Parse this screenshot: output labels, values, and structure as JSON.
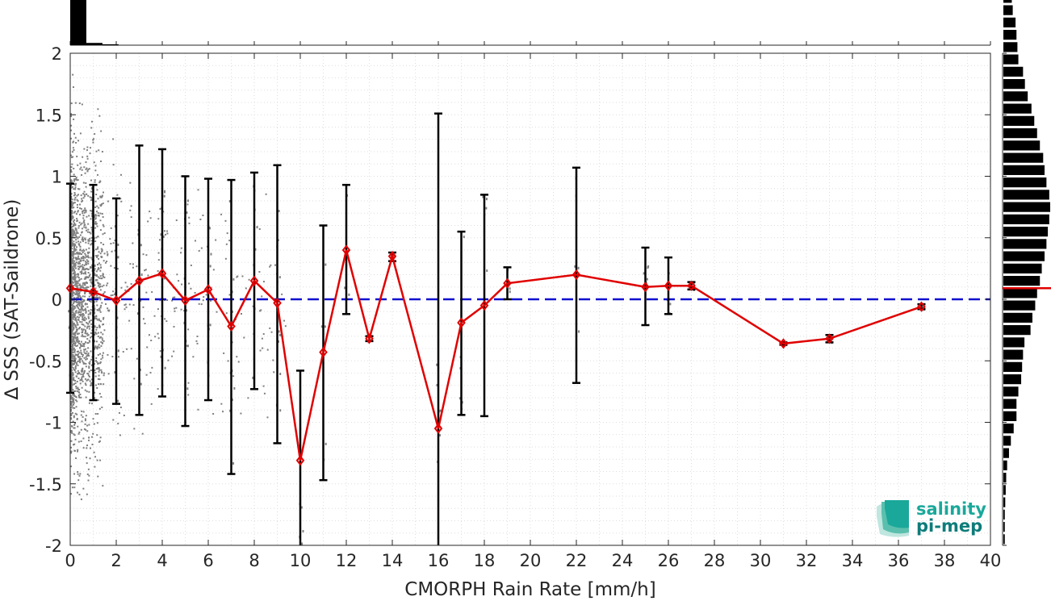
{
  "chart_data": {
    "type": "scatter",
    "xlabel": "CMORPH Rain Rate [mm/h]",
    "ylabel": "∆ SSS (SAT-Saildrone)",
    "xlim": [
      0,
      40
    ],
    "ylim": [
      -2,
      2
    ],
    "x_ticks": [
      0,
      2,
      4,
      6,
      8,
      10,
      12,
      14,
      16,
      18,
      20,
      22,
      24,
      26,
      28,
      30,
      32,
      34,
      36,
      38,
      40
    ],
    "y_ticks": [
      -2,
      -1.5,
      -1,
      -0.5,
      0,
      0.5,
      1,
      1.5,
      2
    ],
    "y_tick_labels": [
      "-2",
      "-1.5",
      "-1",
      "-0.5",
      "0",
      "0.5",
      "1",
      "1.5",
      "2"
    ],
    "grid": true,
    "reference_line": {
      "y": 0,
      "style": "dashed",
      "color": "#1010d0"
    },
    "mean_series": {
      "color": "#e00000",
      "x": [
        0,
        1,
        2,
        3,
        4,
        5,
        6,
        7,
        8,
        9,
        10,
        11,
        12,
        13,
        14,
        16,
        17,
        18,
        19,
        22,
        25,
        26,
        27,
        31,
        33,
        37
      ],
      "y": [
        0.09,
        0.06,
        -0.01,
        0.15,
        0.21,
        -0.01,
        0.08,
        -0.22,
        0.15,
        -0.03,
        -1.31,
        -0.43,
        0.4,
        -0.32,
        0.35,
        -1.05,
        -0.19,
        -0.05,
        0.13,
        0.2,
        0.1,
        0.11,
        0.11,
        -0.36,
        -0.32,
        -0.06
      ]
    },
    "error_bars": [
      {
        "x": 0,
        "low": -0.76,
        "high": 0.94
      },
      {
        "x": 1,
        "low": -0.82,
        "high": 0.93
      },
      {
        "x": 2,
        "low": -0.85,
        "high": 0.82
      },
      {
        "x": 3,
        "low": -0.94,
        "high": 1.25
      },
      {
        "x": 4,
        "low": -0.79,
        "high": 1.22
      },
      {
        "x": 5,
        "low": -1.03,
        "high": 1.0
      },
      {
        "x": 6,
        "low": -0.82,
        "high": 0.98
      },
      {
        "x": 7,
        "low": -1.42,
        "high": 0.97
      },
      {
        "x": 8,
        "low": -0.73,
        "high": 1.03
      },
      {
        "x": 9,
        "low": -1.17,
        "high": 1.09
      },
      {
        "x": 10,
        "low": -2.05,
        "high": -0.58
      },
      {
        "x": 11,
        "low": -1.47,
        "high": 0.6
      },
      {
        "x": 12,
        "low": -0.12,
        "high": 0.93
      },
      {
        "x": 13,
        "low": -0.34,
        "high": -0.3
      },
      {
        "x": 14,
        "low": 0.31,
        "high": 0.38
      },
      {
        "x": 16,
        "low": -2.05,
        "high": 1.51
      },
      {
        "x": 17,
        "low": -0.94,
        "high": 0.55
      },
      {
        "x": 18,
        "low": -0.95,
        "high": 0.85
      },
      {
        "x": 19,
        "low": 0.0,
        "high": 0.26
      },
      {
        "x": 22,
        "low": -0.68,
        "high": 1.07
      },
      {
        "x": 25,
        "low": -0.21,
        "high": 0.42
      },
      {
        "x": 26,
        "low": -0.12,
        "high": 0.34
      },
      {
        "x": 27,
        "low": 0.08,
        "high": 0.14
      },
      {
        "x": 31,
        "low": -0.37,
        "high": -0.35
      },
      {
        "x": 33,
        "low": -0.35,
        "high": -0.29
      },
      {
        "x": 37,
        "low": -0.08,
        "high": -0.04
      }
    ],
    "scatter_color": "#808080",
    "top_histogram": {
      "bin_edges_start": 0,
      "bin_width": 0.7,
      "relative_counts": [
        1.0,
        0.05,
        0.02
      ]
    },
    "right_histogram": {
      "bin_start": -1.95,
      "bin_width": 0.1,
      "relative_counts": [
        0.03,
        0.03,
        0.03,
        0.04,
        0.05,
        0.06,
        0.08,
        0.12,
        0.16,
        0.22,
        0.28,
        0.28,
        0.32,
        0.38,
        0.4,
        0.42,
        0.45,
        0.58,
        0.62,
        0.68,
        0.72,
        0.78,
        0.82,
        0.88,
        0.92,
        0.95,
        0.98,
        1.0,
        0.98,
        0.92,
        0.88,
        0.85,
        0.78,
        0.72,
        0.66,
        0.6,
        0.52,
        0.46,
        0.42,
        0.32,
        0.3,
        0.28,
        0.26,
        0.2,
        0.18,
        0.16,
        0.14,
        0.12,
        0.1,
        0.08
      ],
      "mean_line_y": 0.09,
      "mean_line_color": "#e00000"
    }
  },
  "logo": {
    "line1": "salinity",
    "line2": "pi-mep",
    "color1": "#1aa89a",
    "color2": "#0d7c7a"
  }
}
